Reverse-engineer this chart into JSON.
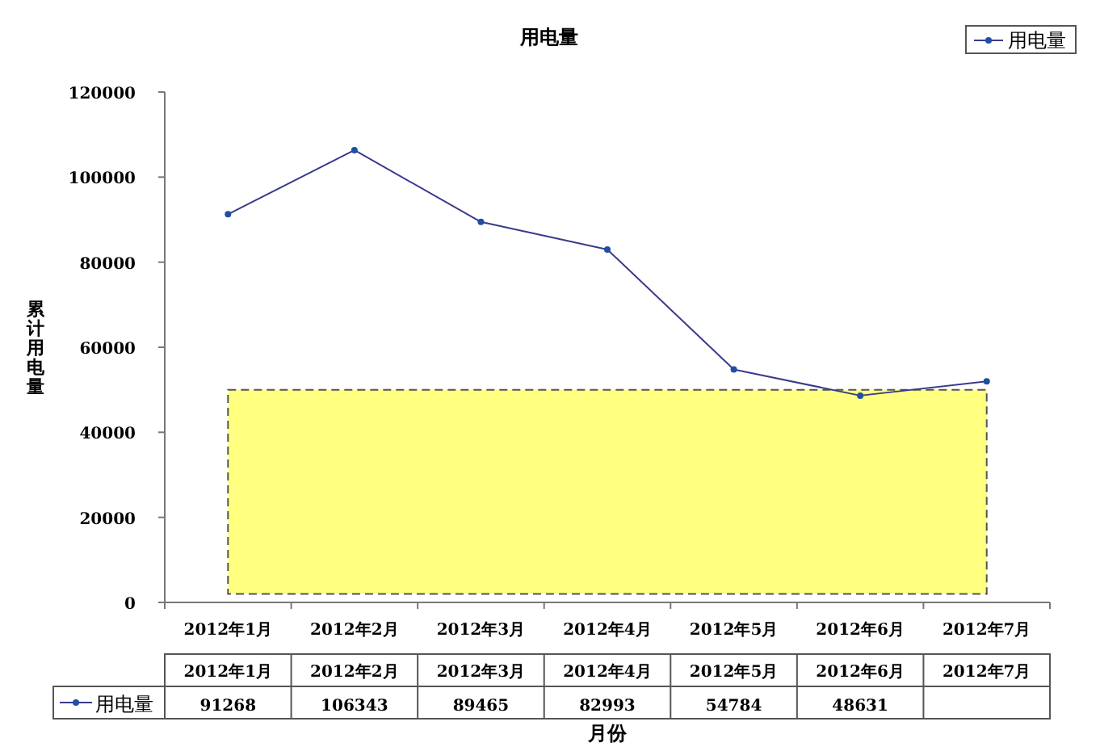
{
  "chart_data": {
    "type": "line",
    "title": "用电量",
    "xlabel": "月份",
    "ylabel": "累计用电量",
    "categories": [
      "2012年1月",
      "2012年2月",
      "2012年3月",
      "2012年4月",
      "2012年5月",
      "2012年6月",
      "2012年7月"
    ],
    "series": [
      {
        "name": "用电量",
        "color": "#3a3a8c",
        "values": [
          91268,
          106343,
          89465,
          82993,
          54784,
          48631,
          52000
        ],
        "value_labels": [
          "91268",
          "106343",
          "89465",
          "82993",
          "54784",
          "48631",
          null
        ]
      }
    ],
    "ylim": [
      0,
      120000
    ],
    "yticks": [
      0,
      20000,
      40000,
      60000,
      80000,
      100000,
      120000
    ],
    "bands": [
      {
        "axis": "y",
        "from": 2000,
        "to": 50000,
        "color": "#ffff80"
      }
    ],
    "marker": "circle",
    "line_style": "solid",
    "grid": false,
    "legend": "top right"
  }
}
